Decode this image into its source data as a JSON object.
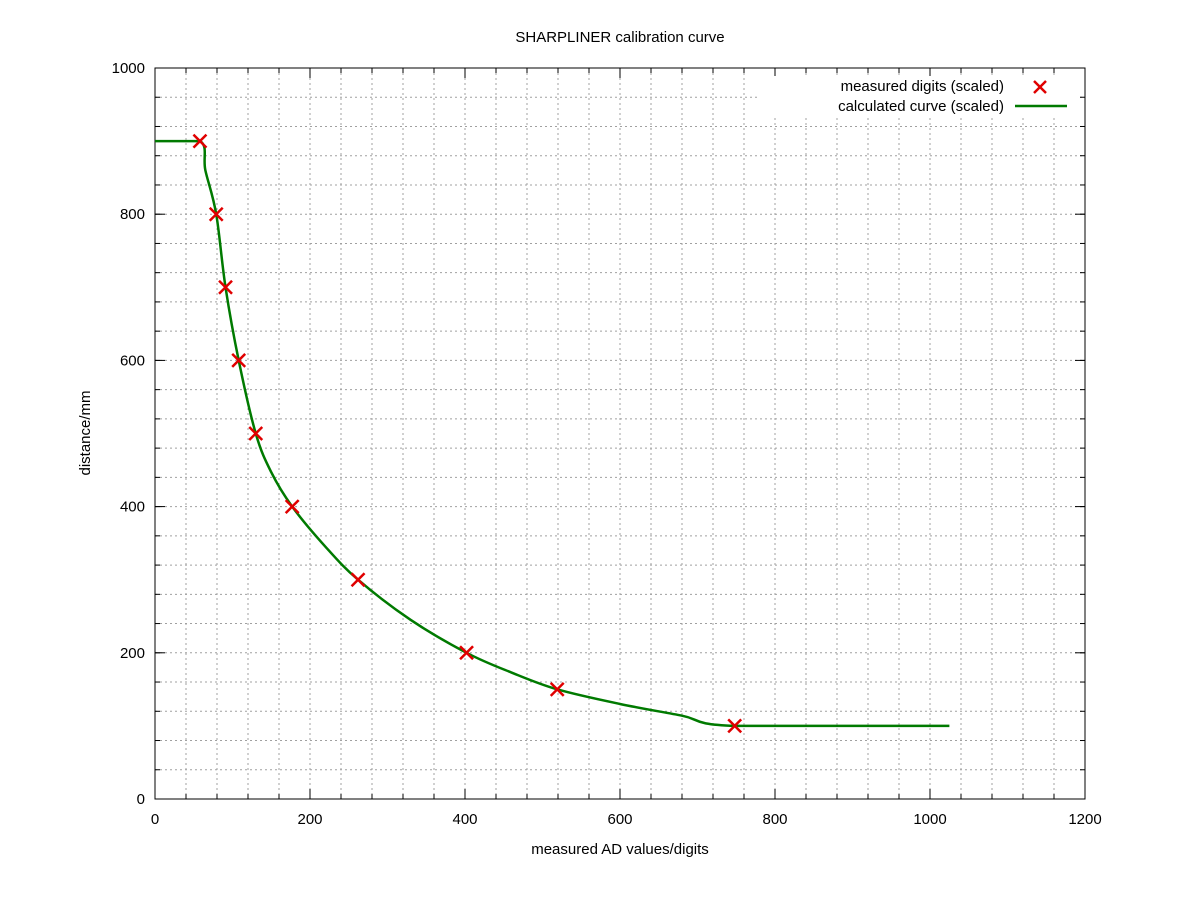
{
  "chart_data": {
    "type": "line",
    "title": "SHARPLINER calibration curve",
    "xlabel": "measured AD values/digits",
    "ylabel": "distance/mm",
    "xlim": [
      0,
      1200
    ],
    "ylim": [
      0,
      1000
    ],
    "x_ticks": [
      0,
      200,
      400,
      600,
      800,
      1000,
      1200
    ],
    "y_ticks": [
      0,
      200,
      400,
      600,
      800,
      1000
    ],
    "x_tick_labels": [
      "0",
      "200",
      "400",
      "600",
      "800",
      "1000",
      "1200"
    ],
    "y_tick_labels": [
      "0",
      "200",
      "400",
      "600",
      "800",
      "1000"
    ],
    "grid": true,
    "minor_grid": true,
    "legend_position": "top-right",
    "series": [
      {
        "name": "measured digits (scaled)",
        "kind": "scatter",
        "marker": "x",
        "color": "#e00000",
        "x": [
          58,
          79,
          91,
          108,
          130,
          177,
          262,
          402,
          519,
          748
        ],
        "y": [
          900,
          800,
          700,
          600,
          500,
          400,
          300,
          200,
          150,
          100
        ]
      },
      {
        "name": "calculated curve (scaled)",
        "kind": "line",
        "color": "#007a00",
        "x": [
          0,
          58,
          65,
          79,
          91,
          108,
          130,
          150,
          177,
          220,
          262,
          330,
          402,
          460,
          519,
          600,
          680,
          748,
          1025
        ],
        "y": [
          900,
          900,
          860,
          800,
          700,
          600,
          500,
          447,
          400,
          345,
          300,
          245,
          200,
          173,
          150,
          130,
          114,
          100,
          100
        ]
      }
    ]
  }
}
